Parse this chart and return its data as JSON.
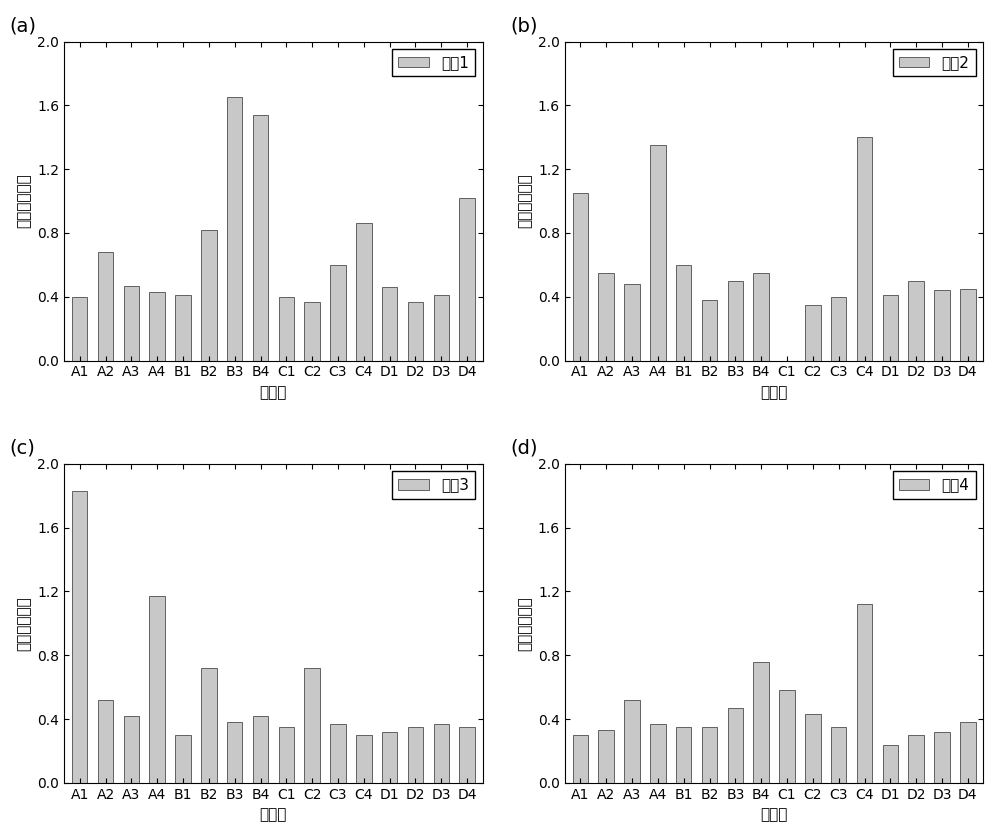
{
  "categories": [
    "A1",
    "A2",
    "A3",
    "A4",
    "B1",
    "B2",
    "B3",
    "B4",
    "C1",
    "C2",
    "C3",
    "C4",
    "D1",
    "D2",
    "D3",
    "D4"
  ],
  "subplot_labels": [
    "(a)",
    "(b)",
    "(c)",
    "(d)"
  ],
  "legend_labels": [
    "工况1",
    "工况2",
    "工况3",
    "工况4"
  ],
  "xlabel": "实施例",
  "ylabel": "平均摩擦系数",
  "ylim": [
    0,
    2.0
  ],
  "yticks": [
    0.0,
    0.4,
    0.8,
    1.2,
    1.6,
    2.0
  ],
  "bar_color": "#c8c8c8",
  "bar_edgecolor": "#606060",
  "values_a": [
    0.4,
    0.68,
    0.47,
    0.43,
    0.41,
    0.82,
    1.65,
    1.54,
    0.4,
    0.37,
    0.6,
    0.86,
    0.46,
    0.37,
    0.41,
    1.02
  ],
  "values_b": [
    1.05,
    0.55,
    0.48,
    1.35,
    0.6,
    0.38,
    0.5,
    0.55,
    0.35,
    0.4,
    1.4,
    0.41,
    0.5,
    0.44,
    0.45
  ],
  "values_b_cats": [
    "A1",
    "A2",
    "A3",
    "A4",
    "B1",
    "B2",
    "B3",
    "B4",
    "C2",
    "C3",
    "C4",
    "D1",
    "D2",
    "D3",
    "D4"
  ],
  "values_c": [
    1.83,
    0.52,
    0.42,
    1.17,
    0.3,
    0.72,
    0.38,
    0.42,
    0.35,
    0.72,
    0.37,
    0.3,
    0.32,
    0.35,
    0.37,
    0.35
  ],
  "values_d": [
    0.3,
    0.33,
    0.52,
    0.37,
    0.35,
    0.35,
    0.47,
    0.76,
    0.58,
    0.43,
    0.35,
    1.12,
    0.24,
    0.3,
    0.32,
    0.38
  ],
  "background_color": "#ffffff",
  "axis_fontsize": 11,
  "tick_fontsize": 10,
  "legend_fontsize": 11,
  "subplot_label_fontsize": 14,
  "bar_width": 0.6
}
